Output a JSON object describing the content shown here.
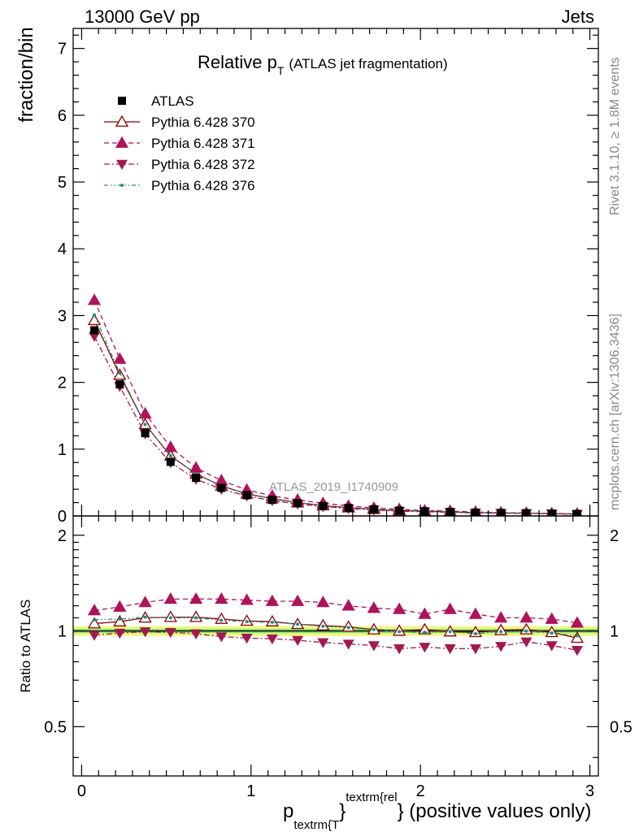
{
  "header": {
    "energy_label": "13000 GeV pp",
    "process_label": "Jets"
  },
  "side_text": {
    "rivet_info": "Rivet 3.1.10, ≥ 1.8M events",
    "site_info": "mcplots.cern.ch [arXiv:1306.3436]"
  },
  "watermark": "ATLAS_2019_I1740909",
  "chart_data": [
    {
      "type": "scatter",
      "panel": "main",
      "title_main": "Relative p",
      "title_sub": "T",
      "title_extra": "(ATLAS jet fragmentation)",
      "ylabel": "fraction/bin",
      "ylim": [
        0,
        7.3
      ],
      "xlim": [
        -0.05,
        3.05
      ],
      "yticks": [
        {
          "v": 0,
          "label": "0"
        },
        {
          "v": 1,
          "label": "1"
        },
        {
          "v": 2,
          "label": "2"
        },
        {
          "v": 3,
          "label": "3"
        },
        {
          "v": 4,
          "label": "4"
        },
        {
          "v": 5,
          "label": "5"
        },
        {
          "v": 6,
          "label": "6"
        },
        {
          "v": 7,
          "label": "7"
        }
      ],
      "legend_position": "top-left",
      "x": [
        0.075,
        0.225,
        0.375,
        0.525,
        0.675,
        0.825,
        0.975,
        1.125,
        1.275,
        1.425,
        1.575,
        1.725,
        1.875,
        2.025,
        2.175,
        2.325,
        2.475,
        2.625,
        2.775,
        2.925
      ],
      "series": [
        {
          "name": "ATLAS",
          "color": "#000000",
          "marker": "square",
          "line": "none",
          "values": [
            2.78,
            1.97,
            1.24,
            0.81,
            0.57,
            0.42,
            0.31,
            0.24,
            0.19,
            0.15,
            0.12,
            0.1,
            0.08,
            0.07,
            0.06,
            0.05,
            0.045,
            0.04,
            0.035,
            0.03
          ]
        },
        {
          "name": "Pythia 6.428 370",
          "color": "#8b0000",
          "marker": "triangle-up-open",
          "line": "solid",
          "values": [
            2.93,
            2.11,
            1.37,
            0.9,
            0.63,
            0.45,
            0.33,
            0.26,
            0.2,
            0.155,
            0.125,
            0.1,
            0.08,
            0.072,
            0.06,
            0.05,
            0.046,
            0.041,
            0.035,
            0.028
          ]
        },
        {
          "name": "Pythia 6.428 371",
          "color": "#b0135a",
          "marker": "triangle-up",
          "line": "dashed",
          "values": [
            3.23,
            2.35,
            1.53,
            1.03,
            0.72,
            0.53,
            0.39,
            0.3,
            0.24,
            0.19,
            0.15,
            0.12,
            0.1,
            0.08,
            0.073,
            0.06,
            0.05,
            0.045,
            0.038,
            0.032
          ]
        },
        {
          "name": "Pythia 6.428 372",
          "color": "#a3194f",
          "marker": "triangle-down",
          "line": "dashdot",
          "values": [
            2.69,
            1.94,
            1.23,
            0.8,
            0.55,
            0.4,
            0.3,
            0.23,
            0.18,
            0.14,
            0.11,
            0.09,
            0.07,
            0.063,
            0.053,
            0.044,
            0.04,
            0.037,
            0.032,
            0.026
          ]
        },
        {
          "name": "Pythia 6.428 376",
          "color": "#1a8f7c",
          "marker": "dot",
          "line": "dashdotdot",
          "values": [
            3.01,
            2.14,
            1.37,
            0.9,
            0.63,
            0.45,
            0.33,
            0.26,
            0.2,
            0.155,
            0.125,
            0.1,
            0.08,
            0.07,
            0.06,
            0.05,
            0.045,
            0.04,
            0.035,
            0.03
          ]
        }
      ]
    },
    {
      "type": "scatter",
      "panel": "ratio",
      "ylabel": "Ratio to ATLAS",
      "xlabel_main": "p",
      "xlabel_sub": "textrm{T",
      "xlabel_sup": "textrm{rel",
      "xlabel_tail": "} (positive values only)",
      "xlabel_brace": "}",
      "ylim": [
        0.35,
        2.3
      ],
      "xlim": [
        -0.05,
        3.05
      ],
      "ylog": true,
      "yticks": [
        {
          "v": 0.5,
          "label": "0.5"
        },
        {
          "v": 1,
          "label": "1"
        },
        {
          "v": 2,
          "label": "2"
        }
      ],
      "xticks": [
        {
          "v": 0,
          "label": "0"
        },
        {
          "v": 1,
          "label": "1"
        },
        {
          "v": 2,
          "label": "2"
        },
        {
          "v": 3,
          "label": "3"
        }
      ],
      "reference": 1.0,
      "band_inner": [
        0.985,
        1.015
      ],
      "band_outer": [
        0.965,
        1.035
      ],
      "band_inner_color": "#7fe57f",
      "band_outer_color": "#f5f57a",
      "x": [
        0.075,
        0.225,
        0.375,
        0.525,
        0.675,
        0.825,
        0.975,
        1.125,
        1.275,
        1.425,
        1.575,
        1.725,
        1.875,
        2.025,
        2.175,
        2.325,
        2.475,
        2.625,
        2.775,
        2.925
      ],
      "series": [
        {
          "name": "Pythia 6.428 370",
          "color": "#8b0000",
          "marker": "triangle-up-open",
          "line": "solid",
          "values": [
            1.055,
            1.07,
            1.1,
            1.105,
            1.105,
            1.09,
            1.075,
            1.07,
            1.05,
            1.04,
            1.03,
            1.01,
            1.0,
            1.01,
            0.995,
            0.99,
            1.005,
            1.01,
            0.99,
            0.95
          ]
        },
        {
          "name": "Pythia 6.428 371",
          "color": "#b0135a",
          "marker": "triangle-up",
          "line": "dashed",
          "values": [
            1.16,
            1.19,
            1.23,
            1.26,
            1.26,
            1.26,
            1.25,
            1.24,
            1.24,
            1.23,
            1.2,
            1.18,
            1.17,
            1.13,
            1.17,
            1.13,
            1.1,
            1.1,
            1.09,
            1.06
          ]
        },
        {
          "name": "Pythia 6.428 372",
          "color": "#a3194f",
          "marker": "triangle-down",
          "line": "dashdot",
          "values": [
            0.97,
            0.985,
            0.995,
            0.99,
            0.98,
            0.96,
            0.95,
            0.945,
            0.935,
            0.92,
            0.91,
            0.9,
            0.88,
            0.89,
            0.88,
            0.88,
            0.895,
            0.925,
            0.9,
            0.87
          ]
        },
        {
          "name": "Pythia 6.428 376",
          "color": "#1a8f7c",
          "marker": "dot",
          "line": "dashdotdot",
          "values": [
            1.085,
            1.09,
            1.105,
            1.1,
            1.1,
            1.08,
            1.07,
            1.065,
            1.05,
            1.035,
            1.025,
            1.01,
            0.995,
            0.99,
            0.995,
            0.98,
            0.995,
            1.0,
            0.985,
            0.965
          ]
        }
      ]
    }
  ]
}
